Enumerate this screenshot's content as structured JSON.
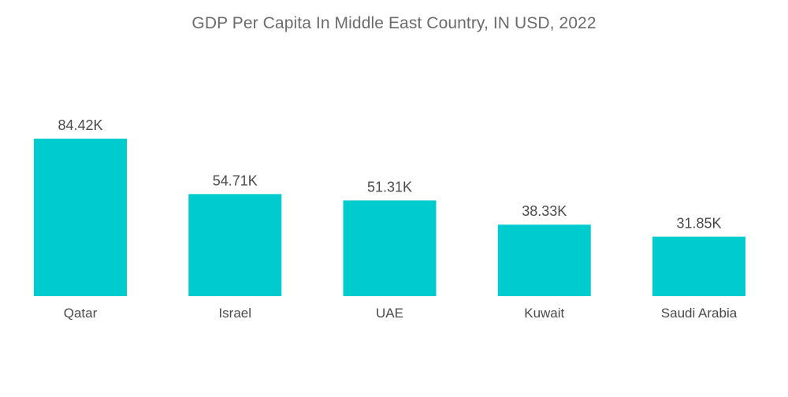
{
  "chart_data": {
    "type": "bar",
    "title": "GDP Per Capita In Middle East Country, IN USD, 2022",
    "xlabel": "",
    "ylabel": "",
    "categories": [
      "Qatar",
      "Israel",
      "UAE",
      "Kuwait",
      "Saudi Arabia"
    ],
    "values": [
      84.42,
      54.71,
      51.31,
      38.33,
      31.85
    ],
    "value_labels": [
      "84.42K",
      "54.71K",
      "51.31K",
      "38.33K",
      "31.85K"
    ],
    "ylim": [
      0,
      84.42
    ],
    "grid": false,
    "legend": "none",
    "bar_color": "#00CCD0"
  }
}
